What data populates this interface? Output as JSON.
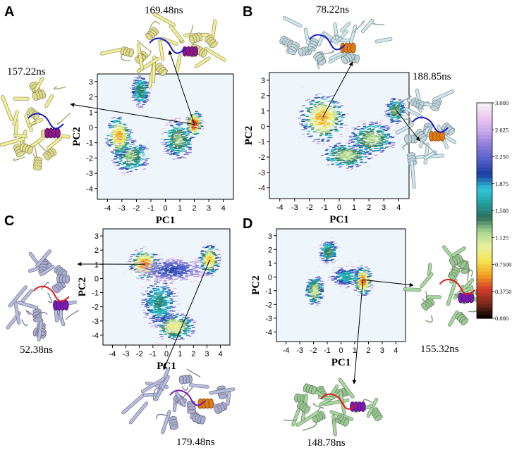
{
  "chart_data": [
    {
      "panel": "A",
      "type": "heatmap",
      "xlabel": "PC1",
      "ylabel": "PC2",
      "xlim": [
        -4.7,
        4.7
      ],
      "ylim": [
        -4.7,
        3.5
      ],
      "xticks": [
        -4,
        -3,
        -2,
        -1,
        0,
        1,
        2,
        3,
        4
      ],
      "yticks": [
        3,
        2,
        1,
        0,
        -1,
        -2,
        -3,
        -4
      ],
      "clusters": [
        {
          "x": -1.7,
          "y": 2.4,
          "sx": 0.3,
          "sy": 0.5,
          "peak": 1.4
        },
        {
          "x": -2.4,
          "y": -1.9,
          "sx": 0.6,
          "sy": 0.5,
          "peak": 1.2
        },
        {
          "x": -3.2,
          "y": -0.6,
          "sx": 0.4,
          "sy": 0.6,
          "peak": 0.6
        },
        {
          "x": 0.9,
          "y": -0.8,
          "sx": 0.5,
          "sy": 0.6,
          "peak": 1.2
        },
        {
          "x": 2.0,
          "y": 0.2,
          "sx": 0.25,
          "sy": 0.4,
          "peak": 0.3
        }
      ],
      "snapshots": [
        {
          "label": "169.48ns",
          "x": 2.0,
          "y": 0.2
        },
        {
          "label": "157.22ns",
          "x": 2.0,
          "y": 0.2
        }
      ]
    },
    {
      "panel": "B",
      "type": "heatmap",
      "xlabel": "PC1",
      "ylabel": "PC2",
      "xlim": [
        -4.7,
        4.7
      ],
      "ylim": [
        -4.7,
        3.5
      ],
      "xticks": [
        -4,
        -3,
        -2,
        -1,
        0,
        1,
        2,
        3,
        4
      ],
      "yticks": [
        3,
        2,
        1,
        0,
        -1,
        -2,
        -3,
        -4
      ],
      "clusters": [
        {
          "x": -1.1,
          "y": 0.5,
          "sx": 0.7,
          "sy": 0.7,
          "peak": 0.6
        },
        {
          "x": 0.5,
          "y": -1.9,
          "sx": 0.8,
          "sy": 0.4,
          "peak": 1.1
        },
        {
          "x": 2.2,
          "y": -0.8,
          "sx": 0.7,
          "sy": 0.5,
          "peak": 1.1
        },
        {
          "x": 3.8,
          "y": 1.0,
          "sx": 0.3,
          "sy": 0.4,
          "peak": 1.2
        }
      ],
      "snapshots": [
        {
          "label": "78.22ns",
          "x": -1.1,
          "y": 0.6
        },
        {
          "label": "188.85ns",
          "x": 3.8,
          "y": 1.1
        }
      ]
    },
    {
      "panel": "C",
      "type": "heatmap",
      "xlabel": "PC1",
      "ylabel": "PC2",
      "xlim": [
        -4.7,
        4.7
      ],
      "ylim": [
        -4.7,
        3.5
      ],
      "xticks": [
        -4,
        -3,
        -2,
        -1,
        0,
        1,
        2,
        3,
        4
      ],
      "yticks": [
        3,
        2,
        1,
        0,
        -1,
        -2,
        -3,
        -4
      ],
      "clusters": [
        {
          "x": -1.6,
          "y": 1.0,
          "sx": 0.5,
          "sy": 0.5,
          "peak": 0.5
        },
        {
          "x": 3.2,
          "y": 1.3,
          "sx": 0.35,
          "sy": 0.5,
          "peak": 0.7
        },
        {
          "x": 0.6,
          "y": -3.4,
          "sx": 0.7,
          "sy": 0.45,
          "peak": 0.9
        },
        {
          "x": -0.5,
          "y": -1.7,
          "sx": 0.6,
          "sy": 0.8,
          "peak": 1.5
        },
        {
          "x": 0.5,
          "y": 0.6,
          "sx": 1.2,
          "sy": 0.4,
          "peak": 2.1
        }
      ],
      "snapshots": [
        {
          "label": "52.38ns",
          "x": -1.6,
          "y": 1.0
        },
        {
          "label": "179.48ns",
          "x": 3.2,
          "y": 1.3
        }
      ]
    },
    {
      "panel": "D",
      "type": "heatmap",
      "xlabel": "PC1",
      "ylabel": "PC2",
      "xlim": [
        -4.7,
        4.7
      ],
      "ylim": [
        -4.7,
        3.5
      ],
      "xticks": [
        -4,
        -3,
        -2,
        -1,
        0,
        1,
        2,
        3,
        4
      ],
      "yticks": [
        3,
        2,
        1,
        0,
        -1,
        -2,
        -3,
        -4
      ],
      "clusters": [
        {
          "x": -0.9,
          "y": 1.8,
          "sx": 0.3,
          "sy": 0.4,
          "peak": 1.3
        },
        {
          "x": -1.9,
          "y": -1.0,
          "sx": 0.3,
          "sy": 0.5,
          "peak": 1.0
        },
        {
          "x": 0.5,
          "y": 0.0,
          "sx": 0.6,
          "sy": 0.35,
          "peak": 1.6
        },
        {
          "x": 1.6,
          "y": -0.3,
          "sx": 0.3,
          "sy": 0.5,
          "peak": 0.5
        }
      ],
      "snapshots": [
        {
          "label": "155.32ns",
          "x": 1.6,
          "y": -0.2
        },
        {
          "label": "148.78ns",
          "x": 1.6,
          "y": -0.2
        }
      ]
    }
  ],
  "colorbar": {
    "ticks": [
      "3.000",
      "2.625",
      "2.250",
      "1.875",
      "1.500",
      "1.125",
      "0.7500",
      "0.3750",
      "0.000"
    ],
    "range": [
      0,
      3.0
    ],
    "colors": [
      "#000000",
      "#7a2a1a",
      "#d23a2a",
      "#f0a020",
      "#f5e650",
      "#e8f0a0",
      "#a8d890",
      "#2f6f5a",
      "#20a0a0",
      "#30c8d8",
      "#1a3aa0",
      "#5060c8",
      "#8a7ad8",
      "#c8a8e8",
      "#f0c8f0",
      "#f4f4f4"
    ]
  },
  "structures": [
    {
      "panel": "A",
      "label": "169.48ns",
      "color": "#f2ef98",
      "highlight": "#8a1a8a",
      "loop": "#1a1ad0"
    },
    {
      "panel": "A",
      "label": "157.22ns",
      "color": "#f2ef98",
      "highlight": "#8a1a8a",
      "loop": "#1a1ad0"
    },
    {
      "panel": "B",
      "label": "78.22ns",
      "color": "#cfe8ee",
      "highlight": "#e07a10",
      "loop": "#1a1ad0"
    },
    {
      "panel": "B",
      "label": "188.85ns",
      "color": "#cfe8ee",
      "highlight": "#e07a10",
      "loop": "#1a1ad0"
    },
    {
      "panel": "C",
      "label": "52.38ns",
      "color": "#b8bce0",
      "highlight": "#7a1ab0",
      "loop": "#e01a1a"
    },
    {
      "panel": "C",
      "label": "179.48ns",
      "color": "#b8bce0",
      "highlight": "#e07a10",
      "loop": "#7a1ab0"
    },
    {
      "panel": "D",
      "label": "155.32ns",
      "color": "#a8d8a0",
      "highlight": "#7a1ab0",
      "loop": "#e01a1a"
    },
    {
      "panel": "D",
      "label": "148.78ns",
      "color": "#a8d8a0",
      "highlight": "#7a1ab0",
      "loop": "#e01a1a"
    }
  ]
}
